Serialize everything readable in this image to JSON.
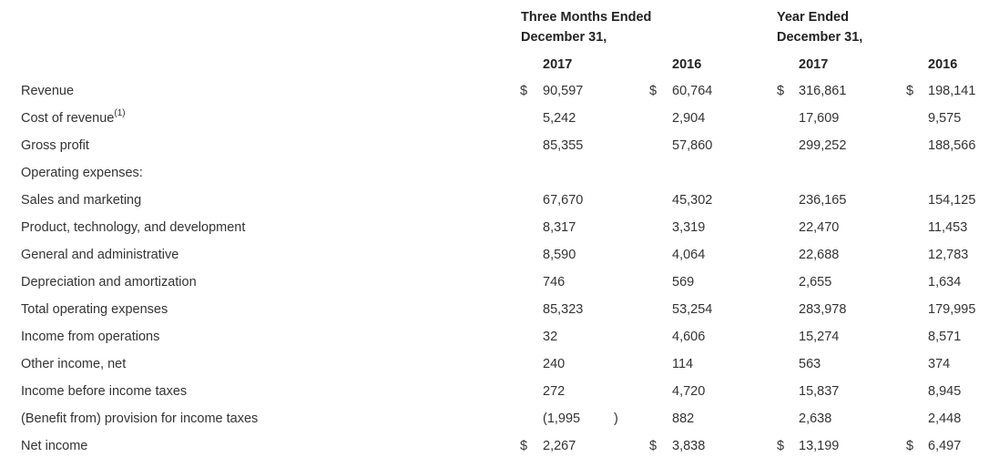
{
  "headers": {
    "three_months_line1": "Three Months Ended",
    "three_months_line2": "December 31,",
    "year_line1": "Year Ended",
    "year_line2": "December 31,",
    "years": [
      "2017",
      "2016",
      "2017",
      "2016"
    ]
  },
  "currency_symbol": "$",
  "cost_footnote": "(1)",
  "rows": [
    {
      "label": "Revenue",
      "values": [
        "90,597",
        "60,764",
        "316,861",
        "198,141"
      ],
      "dollar": true
    },
    {
      "label": "Cost of revenue",
      "values": [
        "5,242",
        "2,904",
        "17,609",
        "9,575"
      ],
      "dollar": false
    },
    {
      "label": "Gross profit",
      "values": [
        "85,355",
        "57,860",
        "299,252",
        "188,566"
      ],
      "dollar": false
    },
    {
      "label": "Operating expenses:",
      "values": [
        "",
        "",
        "",
        ""
      ],
      "dollar": false
    },
    {
      "label": "Sales and marketing",
      "values": [
        "67,670",
        "45,302",
        "236,165",
        "154,125"
      ],
      "dollar": false
    },
    {
      "label": "Product, technology, and development",
      "values": [
        "8,317",
        "3,319",
        "22,470",
        "11,453"
      ],
      "dollar": false
    },
    {
      "label": "General and administrative",
      "values": [
        "8,590",
        "4,064",
        "22,688",
        "12,783"
      ],
      "dollar": false
    },
    {
      "label": "Depreciation and amortization",
      "values": [
        "746",
        "569",
        "2,655",
        "1,634"
      ],
      "dollar": false
    },
    {
      "label": "Total operating expenses",
      "values": [
        "85,323",
        "53,254",
        "283,978",
        "179,995"
      ],
      "dollar": false
    },
    {
      "label": "Income from operations",
      "values": [
        "32",
        "4,606",
        "15,274",
        "8,571"
      ],
      "dollar": false
    },
    {
      "label": "Other income, net",
      "values": [
        "240",
        "114",
        "563",
        "374"
      ],
      "dollar": false
    },
    {
      "label": "Income before income taxes",
      "values": [
        "272",
        "4,720",
        "15,837",
        "8,945"
      ],
      "dollar": false
    },
    {
      "label": "(Benefit from) provision for income taxes",
      "values": [
        "(1,995",
        "882",
        "2,638",
        "2,448"
      ],
      "dollar": false,
      "paren_close": ")"
    },
    {
      "label": "Net income",
      "values": [
        "2,267",
        "3,838",
        "13,199",
        "6,497"
      ],
      "dollar": true
    }
  ]
}
